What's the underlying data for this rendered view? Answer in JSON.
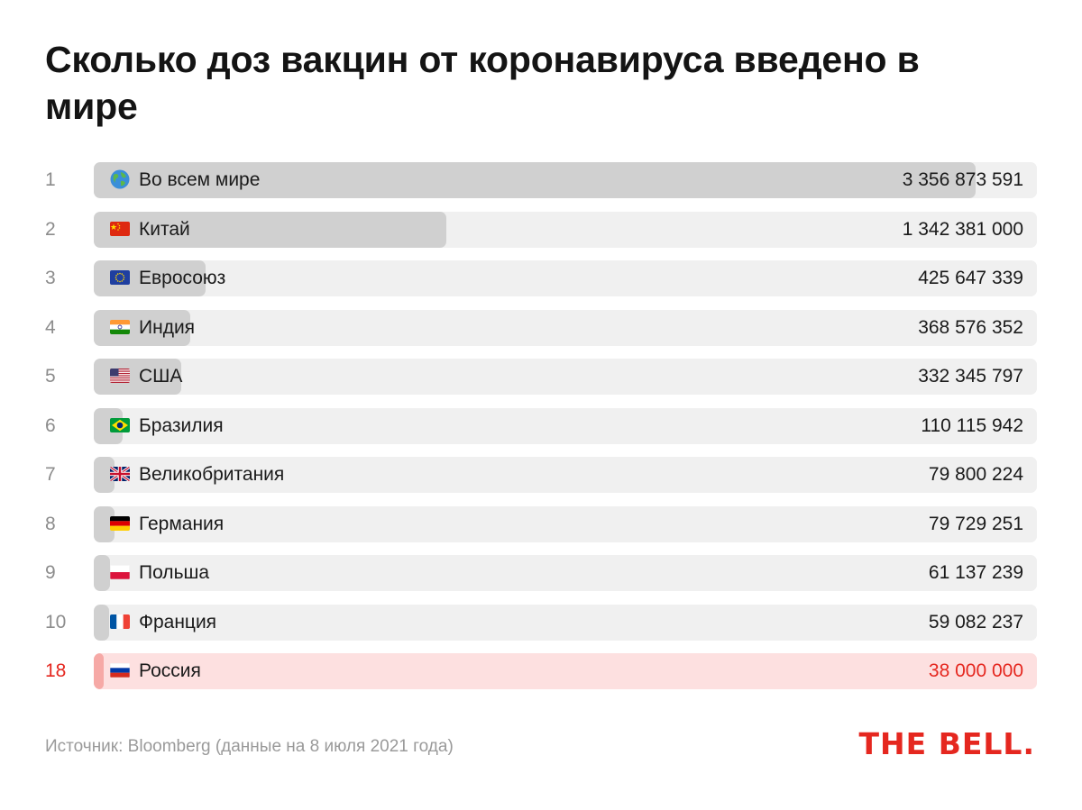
{
  "title": "Сколько доз вакцин от коронавируса введено в мире",
  "source": "Источник: Bloomberg (данные на 8 июля 2021 года)",
  "logo": "THE BELL.",
  "colors": {
    "bar": "#d0d0d0",
    "track": "#f0f0f0",
    "highlight_text": "#e5271f",
    "highlight_bar": "#f6a9a6",
    "highlight_track": "#fde0e0",
    "brand": "#e5271f"
  },
  "chart_data": {
    "type": "bar",
    "orientation": "horizontal",
    "title": "Сколько доз вакцин от коронавируса введено в мире",
    "xlabel": "",
    "ylabel": "",
    "xlim": [
      0,
      3356873591
    ],
    "grid": false,
    "rows": [
      {
        "rank": "1",
        "label": "Во всем мире",
        "value": 3356873591,
        "display": "3 356 873 591",
        "flag_icon": "globe-icon"
      },
      {
        "rank": "2",
        "label": "Китай",
        "value": 1342381000,
        "display": "1 342 381 000",
        "flag_icon": "flag-china-icon"
      },
      {
        "rank": "3",
        "label": "Евросоюз",
        "value": 425647339,
        "display": "425 647 339",
        "flag_icon": "flag-eu-icon"
      },
      {
        "rank": "4",
        "label": "Индия",
        "value": 368576352,
        "display": "368 576 352",
        "flag_icon": "flag-india-icon"
      },
      {
        "rank": "5",
        "label": "США",
        "value": 332345797,
        "display": "332 345 797",
        "flag_icon": "flag-usa-icon"
      },
      {
        "rank": "6",
        "label": "Бразилия",
        "value": 110115942,
        "display": "110 115 942",
        "flag_icon": "flag-brazil-icon"
      },
      {
        "rank": "7",
        "label": "Великобритания",
        "value": 79800224,
        "display": "79 800 224",
        "flag_icon": "flag-uk-icon"
      },
      {
        "rank": "8",
        "label": "Германия",
        "value": 79729251,
        "display": "79 729 251",
        "flag_icon": "flag-germany-icon"
      },
      {
        "rank": "9",
        "label": "Польша",
        "value": 61137239,
        "display": "61 137 239",
        "flag_icon": "flag-poland-icon"
      },
      {
        "rank": "10",
        "label": "Франция",
        "value": 59082237,
        "display": "59 082 237",
        "flag_icon": "flag-france-icon"
      },
      {
        "rank": "18",
        "label": "Россия",
        "value": 38000000,
        "display": "38 000 000",
        "flag_icon": "flag-russia-icon",
        "highlight": true
      }
    ]
  }
}
